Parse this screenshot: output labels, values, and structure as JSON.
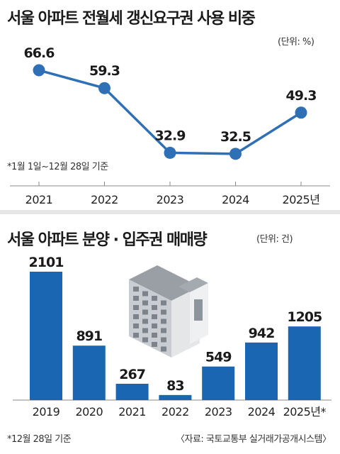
{
  "colors": {
    "line": "#2e6fb5",
    "bar": "#1b66b3",
    "axis": "#888888",
    "divider": "#e6e6e6"
  },
  "icons": [
    "apartment-building-icon"
  ],
  "top": {
    "unit": "(단위: %)",
    "note": "*1월 1일~12월 28일 기준"
  },
  "bottom": {
    "unit": "(단위: 건)",
    "note": "*12월 28일 기준",
    "source": "〈자료: 국토교통부 실거래가공개시스템〉"
  },
  "chart_data": [
    {
      "type": "line",
      "title": "서울 아파트 전월세 갱신요구권 사용 비중",
      "categories": [
        "2021",
        "2022",
        "2023",
        "2024",
        "2025년"
      ],
      "values": [
        66.6,
        59.3,
        32.9,
        32.5,
        49.3
      ],
      "value_labels": [
        "66.6",
        "59.3",
        "32.9",
        "32.5",
        "49.3"
      ],
      "ylim": [
        20,
        75
      ],
      "grid": false,
      "legend": "none"
    },
    {
      "type": "bar",
      "title": "서울 아파트 분양 · 입주권 매매량",
      "categories": [
        "2019",
        "2020",
        "2021",
        "2022",
        "2023",
        "2024",
        "2025년*"
      ],
      "values": [
        2101,
        891,
        267,
        83,
        549,
        942,
        1205
      ],
      "value_labels": [
        "2101",
        "891",
        "267",
        "83",
        "549",
        "942",
        "1205"
      ],
      "ylim": [
        0,
        2200
      ],
      "grid": false,
      "legend": "none"
    }
  ]
}
